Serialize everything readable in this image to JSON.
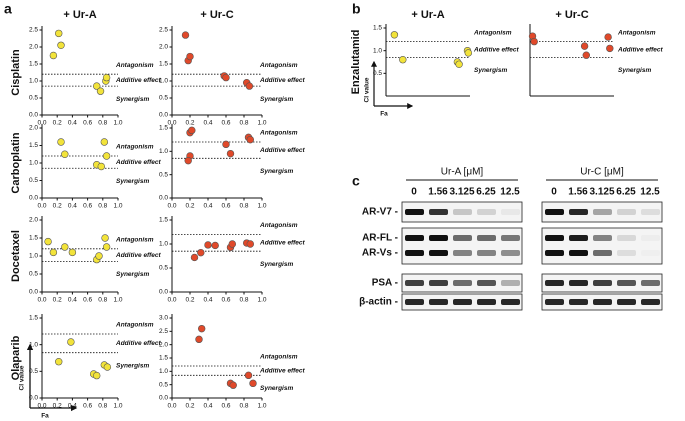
{
  "panels": [
    "a",
    "b",
    "c"
  ],
  "axis_key": {
    "ylabel": "CI value",
    "xlabel": "Fa"
  },
  "chart_data": [
    {
      "type": "scatter",
      "title": "+ Ur-A",
      "ylabel": "Cisplatin",
      "x": [
        0.15,
        0.22,
        0.25,
        0.72,
        0.77,
        0.84,
        0.85
      ],
      "values": [
        1.75,
        2.4,
        2.05,
        0.85,
        0.7,
        1.0,
        1.1
      ],
      "color": "#f2e33a",
      "xlim": [
        0,
        1
      ],
      "ylim": [
        0,
        2.5
      ],
      "xticks": [
        {
          "value": 0,
          "label": "0.0"
        },
        0.2,
        0.4,
        0.6,
        0.8,
        {
          "value": 1,
          "label": "1.0"
        }
      ],
      "yticks": [
        {
          "value": 0,
          "label": "0.0"
        },
        0.5,
        {
          "value": 1,
          "label": "1.0"
        },
        1.5,
        {
          "value": 2,
          "label": "2.0"
        },
        2.5
      ],
      "hlines": [
        1.2,
        0.85
      ],
      "annotations": [
        "Antagonism",
        "Additive effect",
        "Synergism"
      ]
    },
    {
      "type": "scatter",
      "title": "+ Ur-C",
      "x": [
        0.15,
        0.18,
        0.2,
        0.58,
        0.6,
        0.83,
        0.86
      ],
      "values": [
        2.35,
        1.6,
        1.72,
        1.15,
        1.1,
        0.95,
        0.85
      ],
      "color": "#e0492a",
      "xlim": [
        0,
        1
      ],
      "ylim": [
        0,
        2.5
      ],
      "xticks": [
        {
          "value": 0,
          "label": "0.0"
        },
        0.2,
        0.4,
        0.6,
        0.8,
        {
          "value": 1,
          "label": "1.0"
        }
      ],
      "yticks": [
        {
          "value": 0,
          "label": "0.0"
        },
        0.5,
        {
          "value": 1,
          "label": "1.0"
        },
        1.5,
        {
          "value": 2,
          "label": "2.0"
        },
        2.5
      ],
      "hlines": [
        1.2,
        0.85
      ],
      "annotations": [
        "Antagonism",
        "Additive effect",
        "Synergism"
      ]
    },
    {
      "type": "scatter",
      "ylabel": "Carboplatin",
      "x": [
        0.25,
        0.3,
        0.72,
        0.78,
        0.82,
        0.85
      ],
      "values": [
        1.6,
        1.25,
        0.95,
        0.9,
        1.6,
        1.2
      ],
      "color": "#f2e33a",
      "xlim": [
        0,
        1
      ],
      "ylim": [
        0,
        2
      ],
      "xticks": [
        {
          "value": 0,
          "label": "0.0"
        },
        0.2,
        0.4,
        0.6,
        0.8,
        {
          "value": 1,
          "label": "1.0"
        }
      ],
      "yticks": [
        {
          "value": 0,
          "label": "0.0"
        },
        0.5,
        {
          "value": 1,
          "label": "1.0"
        },
        1.5,
        {
          "value": 2,
          "label": "2.0"
        }
      ],
      "hlines": [
        1.2,
        0.85
      ],
      "annotations": [
        "Antagonism",
        "Additive effect",
        "Synergism"
      ]
    },
    {
      "type": "scatter",
      "x": [
        0.2,
        0.22,
        0.2,
        0.18,
        0.6,
        0.65,
        0.85,
        0.87
      ],
      "values": [
        1.4,
        1.45,
        0.9,
        0.8,
        1.15,
        0.95,
        1.3,
        1.25
      ],
      "color": "#e0492a",
      "xlim": [
        0,
        1
      ],
      "ylim": [
        0,
        1.5
      ],
      "xticks": [
        {
          "value": 0,
          "label": "0.0"
        },
        0.2,
        0.4,
        0.6,
        0.8,
        {
          "value": 1,
          "label": "1.0"
        }
      ],
      "yticks": [
        {
          "value": 0,
          "label": "0.0"
        },
        0.5,
        {
          "value": 1,
          "label": "1.0"
        },
        1.5
      ],
      "hlines": [
        1.2,
        0.85
      ],
      "annotations": [
        "Antagonism",
        "Additive effect",
        "Synergism"
      ]
    },
    {
      "type": "scatter",
      "ylabel": "Docetaxel",
      "x": [
        0.08,
        0.15,
        0.3,
        0.4,
        0.72,
        0.75,
        0.83,
        0.85
      ],
      "values": [
        1.4,
        1.1,
        1.25,
        1.1,
        0.9,
        1.0,
        1.5,
        1.25
      ],
      "color": "#f2e33a",
      "xlim": [
        0,
        1
      ],
      "ylim": [
        0,
        2
      ],
      "xticks": [
        {
          "value": 0,
          "label": "0.0"
        },
        0.2,
        0.4,
        0.6,
        0.8,
        {
          "value": 1,
          "label": "1.0"
        }
      ],
      "yticks": [
        {
          "value": 0,
          "label": "0.0"
        },
        0.5,
        {
          "value": 1,
          "label": "1.0"
        },
        1.5,
        {
          "value": 2,
          "label": "2.0"
        }
      ],
      "hlines": [
        1.2,
        0.85
      ],
      "annotations": [
        "Antagonism",
        "Additive effect",
        "Synergism"
      ]
    },
    {
      "type": "scatter",
      "x": [
        0.25,
        0.32,
        0.4,
        0.48,
        0.65,
        0.67,
        0.83,
        0.87
      ],
      "values": [
        0.72,
        0.82,
        0.98,
        0.97,
        0.93,
        1.0,
        1.02,
        1.0
      ],
      "color": "#e0492a",
      "xlim": [
        0,
        1
      ],
      "ylim": [
        0,
        1.5
      ],
      "xticks": [
        {
          "value": 0,
          "label": "0.0"
        },
        0.2,
        0.4,
        0.6,
        0.8,
        {
          "value": 1,
          "label": "1.0"
        }
      ],
      "yticks": [
        {
          "value": 0,
          "label": "0.0"
        },
        0.5,
        {
          "value": 1,
          "label": "1.0"
        },
        1.5
      ],
      "hlines": [
        1.2,
        0.85
      ],
      "annotations": [
        "Antagonism",
        "Additive effect",
        "Synergism"
      ]
    },
    {
      "type": "scatter",
      "ylabel": "Olaparib",
      "x": [
        0.22,
        0.38,
        0.68,
        0.72,
        0.82,
        0.86
      ],
      "values": [
        0.68,
        1.05,
        0.45,
        0.42,
        0.62,
        0.58
      ],
      "color": "#f2e33a",
      "xlim": [
        0,
        1
      ],
      "ylim": [
        0,
        1.5
      ],
      "xticks": [
        {
          "value": 0,
          "label": "0.0"
        },
        0.2,
        0.4,
        0.6,
        0.8,
        {
          "value": 1,
          "label": "1.0"
        }
      ],
      "yticks": [
        {
          "value": 0,
          "label": "0.0"
        },
        0.5,
        {
          "value": 1,
          "label": "1.0"
        },
        1.5
      ],
      "hlines": [
        1.2,
        0.85
      ],
      "annotations": [
        "Antagonism",
        "Additive effect",
        "Synergism"
      ]
    },
    {
      "type": "scatter",
      "x": [
        0.3,
        0.33,
        0.65,
        0.68,
        0.85,
        0.9
      ],
      "values": [
        2.2,
        2.6,
        0.55,
        0.48,
        0.85,
        0.55
      ],
      "color": "#e0492a",
      "xlim": [
        0,
        1
      ],
      "ylim": [
        0,
        3
      ],
      "xticks": [
        {
          "value": 0,
          "label": "0.0"
        },
        0.2,
        0.4,
        0.6,
        0.8,
        {
          "value": 1,
          "label": "1.0"
        }
      ],
      "yticks": [
        {
          "value": 0,
          "label": "0.0"
        },
        0.5,
        {
          "value": 1,
          "label": "1.0"
        },
        1.5,
        {
          "value": 2,
          "label": "2.0"
        },
        2.5,
        {
          "value": 3,
          "label": "3.0"
        }
      ],
      "hlines": [
        1.2,
        0.85
      ],
      "annotations": [
        "Antagonism",
        "Additive effect",
        "Synergism"
      ]
    },
    {
      "type": "scatter",
      "title": "+ Ur-A",
      "ylabel": "Enzalutamid",
      "x": [
        0.1,
        0.2,
        0.85,
        0.87,
        0.97,
        0.98
      ],
      "values": [
        1.35,
        0.8,
        0.75,
        0.7,
        1.0,
        0.95
      ],
      "color": "#f2e33a",
      "xlim": [
        0,
        1
      ],
      "ylim": [
        0,
        1.5
      ],
      "yticks": [
        0.5,
        {
          "value": 1,
          "label": "1.0"
        },
        1.5
      ],
      "hlines": [
        1.2,
        0.85
      ],
      "annotations": [
        "Antagonism",
        "Additive effect",
        "Synergism"
      ]
    },
    {
      "type": "scatter",
      "title": "+ Ur-C",
      "x": [
        0.03,
        0.05,
        0.65,
        0.67,
        0.93,
        0.95
      ],
      "values": [
        1.32,
        1.2,
        1.1,
        0.9,
        1.3,
        1.05
      ],
      "color": "#e0492a",
      "xlim": [
        0,
        1
      ],
      "ylim": [
        0,
        1.5
      ],
      "hlines": [
        1.2,
        0.85
      ],
      "annotations": [
        "Antagonism",
        "Additive effect",
        "Synergism"
      ]
    }
  ],
  "blot": {
    "groups": [
      {
        "label": "Ur-A [μM]",
        "concentrations": [
          0,
          1.56,
          3.125,
          6.25,
          12.5
        ]
      },
      {
        "label": "Ur-C [μM]",
        "concentrations": [
          0,
          1.56,
          3.125,
          6.25,
          12.5
        ]
      }
    ],
    "rows": [
      "AR-V7 -",
      "AR-FL -",
      "AR-Vs -",
      "PSA -",
      "β-actin -"
    ]
  }
}
